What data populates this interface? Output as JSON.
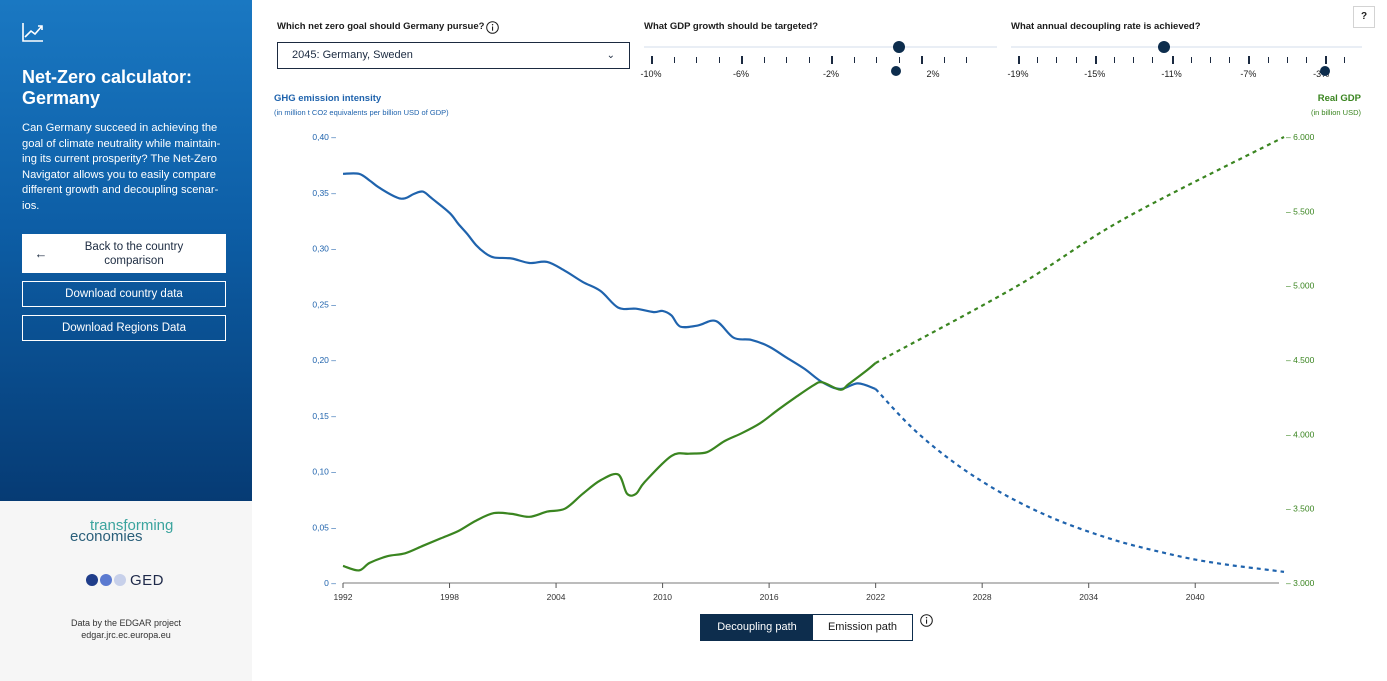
{
  "sidebar": {
    "title": "Net-Zero calculator: Germany",
    "description": "Can Germany succeed in achieving the goal of climate neutrality while maintain-ing its current prosperity? The Net-Zero Navigator allows you to easily compare different growth and decoupling scenar-ios.",
    "back_button": "Back to the country comparison",
    "download_country": "Download country data",
    "download_regions": "Download Regions Data",
    "logo_te_line1": "transforming",
    "logo_te_line2": "economies",
    "logo_ged": "GED",
    "credit_line1": "Data by the EDGAR project",
    "credit_line2": "edgar.jrc.ec.europa.eu"
  },
  "controls": {
    "goal_label": "Which net zero goal should Germany pursue?",
    "goal_value": "2045: Germany, Sweden",
    "gdp_label": "What GDP growth should be targeted?",
    "gdp_ticks": [
      "-10%",
      "-6%",
      "-2%",
      "2%"
    ],
    "gdp_value_pct": 1.0,
    "decoupling_label": "What annual decoupling rate is achieved?",
    "decoupling_ticks": [
      "-19%",
      "-15%",
      "-11%",
      "-7%",
      "-3%"
    ],
    "decoupling_value_pct": -11.4,
    "help": "?"
  },
  "axes": {
    "left_title": "GHG emission intensity",
    "left_subtitle": "(in million t CO2 equivalents per billion USD of GDP)",
    "right_title": "Real GDP",
    "right_subtitle": "(in billion USD)"
  },
  "toggle": {
    "decoupling": "Decoupling path",
    "emission": "Emission path",
    "active": "decoupling"
  },
  "colors": {
    "intensity": "#1f63ad",
    "gdp": "#3a8520",
    "accent": "#0d2d4d"
  },
  "chart_data": {
    "type": "line",
    "x_ticks": [
      1992,
      1998,
      2004,
      2010,
      2016,
      2022,
      2028,
      2034,
      2040
    ],
    "xlim": [
      1992,
      2045
    ],
    "y_left": {
      "ticks": [
        "0",
        "0,05",
        "0,10",
        "0,15",
        "0,20",
        "0,25",
        "0,30",
        "0,35",
        "0,40"
      ],
      "ylim": [
        0,
        0.4
      ]
    },
    "y_right": {
      "ticks": [
        "3.000",
        "3.500",
        "4.000",
        "4.500",
        "5.000",
        "5.500",
        "6.000"
      ],
      "ylim": [
        3000,
        6000
      ]
    },
    "series": [
      {
        "axis": "left",
        "historical": [
          [
            1992,
            0.367
          ],
          [
            1992.9,
            0.367
          ],
          [
            1993.5,
            0.361
          ],
          [
            1994,
            0.355
          ],
          [
            1995,
            0.346
          ],
          [
            1995.5,
            0.345
          ],
          [
            1996,
            0.349
          ],
          [
            1996.5,
            0.351
          ],
          [
            1997,
            0.345
          ],
          [
            1998,
            0.332
          ],
          [
            1998.5,
            0.322
          ],
          [
            1999,
            0.313
          ],
          [
            1999.5,
            0.303
          ],
          [
            2000,
            0.296
          ],
          [
            2000.5,
            0.292
          ],
          [
            2001.5,
            0.291
          ],
          [
            2002.5,
            0.287
          ],
          [
            2003.5,
            0.288
          ],
          [
            2004.5,
            0.28
          ],
          [
            2005.5,
            0.27
          ],
          [
            2006.5,
            0.262
          ],
          [
            2007.5,
            0.247
          ],
          [
            2008.5,
            0.246
          ],
          [
            2009.5,
            0.243
          ],
          [
            2010,
            0.244
          ],
          [
            2010.5,
            0.24
          ],
          [
            2011,
            0.23
          ],
          [
            2012,
            0.231
          ],
          [
            2013,
            0.235
          ],
          [
            2014,
            0.22
          ],
          [
            2015,
            0.218
          ],
          [
            2016,
            0.212
          ],
          [
            2017,
            0.202
          ],
          [
            2018,
            0.192
          ],
          [
            2019,
            0.18
          ],
          [
            2020,
            0.174
          ],
          [
            2021,
            0.179
          ],
          [
            2022,
            0.174
          ]
        ],
        "projection": [
          [
            2022,
            0.174
          ],
          [
            2024,
            0.14
          ],
          [
            2026,
            0.113
          ],
          [
            2028,
            0.091
          ],
          [
            2030,
            0.073
          ],
          [
            2032,
            0.058
          ],
          [
            2034,
            0.046
          ],
          [
            2036,
            0.036
          ],
          [
            2038,
            0.028
          ],
          [
            2040,
            0.021
          ],
          [
            2042,
            0.016
          ],
          [
            2044,
            0.012
          ],
          [
            2045,
            0.01
          ]
        ]
      },
      {
        "axis": "right",
        "historical": [
          [
            1992,
            3.115
          ],
          [
            1992.9,
            3.085
          ],
          [
            1993.5,
            3.135
          ],
          [
            1994.5,
            3.18
          ],
          [
            1995.5,
            3.2
          ],
          [
            1996.5,
            3.25
          ],
          [
            1997.5,
            3.3
          ],
          [
            1998.5,
            3.35
          ],
          [
            1999.5,
            3.42
          ],
          [
            2000.5,
            3.47
          ],
          [
            2001.5,
            3.465
          ],
          [
            2002.5,
            3.445
          ],
          [
            2003.5,
            3.48
          ],
          [
            2004.5,
            3.5
          ],
          [
            2005.5,
            3.6
          ],
          [
            2006.5,
            3.69
          ],
          [
            2007.5,
            3.73
          ],
          [
            2008,
            3.6
          ],
          [
            2008.5,
            3.6
          ],
          [
            2009,
            3.68
          ],
          [
            2010.5,
            3.855
          ],
          [
            2011.5,
            3.87
          ],
          [
            2012.5,
            3.88
          ],
          [
            2013.5,
            3.955
          ],
          [
            2014.5,
            4.01
          ],
          [
            2015.5,
            4.075
          ],
          [
            2016.5,
            4.165
          ],
          [
            2017.5,
            4.25
          ],
          [
            2018.5,
            4.33
          ],
          [
            2019,
            4.35
          ],
          [
            2020,
            4.3
          ],
          [
            2020.5,
            4.34
          ],
          [
            2021.5,
            4.43
          ],
          [
            2022,
            4.48
          ]
        ],
        "projection": [
          [
            2022,
            4.48
          ],
          [
            2030,
            5.0
          ],
          [
            2036,
            5.45
          ],
          [
            2045,
            6.0
          ]
        ]
      }
    ]
  }
}
